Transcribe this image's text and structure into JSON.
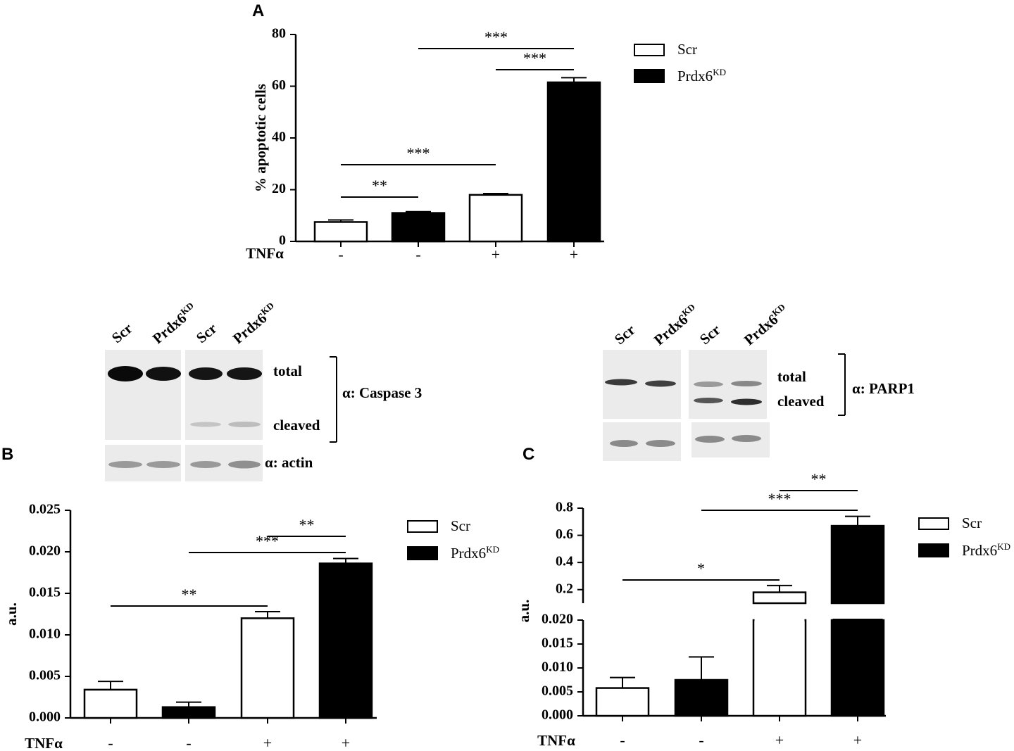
{
  "panels": {
    "a": "A",
    "b": "B",
    "c": "C"
  },
  "legend": {
    "scr": "Scr",
    "kd_base": "Prdx6",
    "kd_sup": "KD"
  },
  "treatment_label": "TNFα",
  "treatment_signs": [
    "-",
    "-",
    "+",
    "+"
  ],
  "blot_b": {
    "lanes": [
      "Scr",
      "Prdx6",
      "Scr",
      "Prdx6"
    ],
    "lane_sup": "KD",
    "total": "total",
    "cleaved": "cleaved",
    "antibody": "α: Caspase 3",
    "loading": "α: actin"
  },
  "blot_c": {
    "lanes": [
      "Scr",
      "Prdx6",
      "Scr",
      "Prdx6"
    ],
    "lane_sup": "KD",
    "total": "total",
    "cleaved": "cleaved",
    "antibody": "α: PARP1"
  },
  "colors": {
    "scr": "#ffffff",
    "kd": "#000000",
    "line": "#000000"
  },
  "chart_data": [
    {
      "type": "bar",
      "panel": "A",
      "categories": [
        "-",
        "-",
        "+",
        "+"
      ],
      "xlabel": "TNFα",
      "ylabel": "% apoptotic cells",
      "ylim": [
        0,
        80
      ],
      "yticks": [
        "0",
        "20",
        "40",
        "60",
        "80"
      ],
      "bars": [
        {
          "series": "Scr",
          "value": 7.5,
          "error": 0.8
        },
        {
          "series": "Prdx6KD",
          "value": 11,
          "error": 0.5
        },
        {
          "series": "Scr",
          "value": 18,
          "error": 0.5
        },
        {
          "series": "Prdx6KD",
          "value": 61.5,
          "error": 1.8
        }
      ],
      "significance": [
        {
          "from": 0,
          "to": 1,
          "label": "**"
        },
        {
          "from": 0,
          "to": 2,
          "label": "***"
        },
        {
          "from": 2,
          "to": 3,
          "label": "***"
        },
        {
          "from": 1,
          "to": 3,
          "label": "***"
        }
      ]
    },
    {
      "type": "bar",
      "panel": "B",
      "categories": [
        "-",
        "-",
        "+",
        "+"
      ],
      "xlabel": "TNFα",
      "ylabel": "a.u.",
      "ylim": [
        0,
        0.025
      ],
      "yticks": [
        "0.000",
        "0.005",
        "0.010",
        "0.015",
        "0.020",
        "0.025"
      ],
      "bars": [
        {
          "series": "Scr",
          "value": 0.0034,
          "error": 0.001
        },
        {
          "series": "Prdx6KD",
          "value": 0.0013,
          "error": 0.0006
        },
        {
          "series": "Scr",
          "value": 0.012,
          "error": 0.0008
        },
        {
          "series": "Prdx6KD",
          "value": 0.0186,
          "error": 0.0006
        }
      ],
      "significance": [
        {
          "from": 0,
          "to": 2,
          "label": "**"
        },
        {
          "from": 1,
          "to": 3,
          "label": "***"
        },
        {
          "from": 2,
          "to": 3,
          "label": "**"
        }
      ]
    },
    {
      "type": "bar",
      "panel": "C",
      "categories": [
        "-",
        "-",
        "+",
        "+"
      ],
      "xlabel": "TNFα",
      "ylabel": "a.u.",
      "broken_axis": true,
      "ylim_lower": [
        0,
        0.02
      ],
      "yticks_lower": [
        "0.000",
        "0.005",
        "0.010",
        "0.015",
        "0.020"
      ],
      "ylim_upper": [
        0.1,
        0.8
      ],
      "yticks_upper": [
        "0.2",
        "0.4",
        "0.6",
        "0.8"
      ],
      "bars": [
        {
          "series": "Scr",
          "value": 0.0058,
          "error": 0.0022
        },
        {
          "series": "Prdx6KD",
          "value": 0.0075,
          "error": 0.0048
        },
        {
          "series": "Scr",
          "value": 0.18,
          "error": 0.05
        },
        {
          "series": "Prdx6KD",
          "value": 0.67,
          "error": 0.07
        }
      ],
      "significance": [
        {
          "from": 0,
          "to": 2,
          "label": "*"
        },
        {
          "from": 1,
          "to": 3,
          "label": "***"
        },
        {
          "from": 2,
          "to": 3,
          "label": "**"
        }
      ]
    }
  ]
}
